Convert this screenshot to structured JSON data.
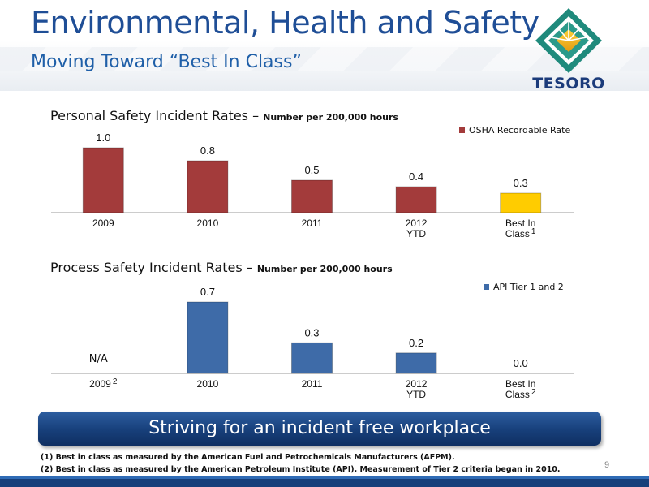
{
  "header": {
    "title": "Environmental, Health and Safety",
    "subtitle": "Moving Toward “Best In Class”",
    "logo_text": "TESORO"
  },
  "chart_data": [
    {
      "type": "bar",
      "title": "Personal Safety Incident Rates – ",
      "title_units": "Number per 200,000 hours",
      "categories": [
        "2009",
        "2010",
        "2011",
        "2012\nYTD",
        "Best In\nClass"
      ],
      "category_superscripts": [
        "",
        "",
        "",
        "",
        "1"
      ],
      "series": [
        {
          "name": "OSHA Recordable Rate",
          "values": [
            1.0,
            0.8,
            0.5,
            0.4,
            0.3
          ],
          "labels": [
            "1.0",
            "0.8",
            "0.5",
            "0.4",
            "0.3"
          ]
        }
      ],
      "colors": [
        "#a33b3b",
        "#a33b3b",
        "#a33b3b",
        "#a33b3b",
        "#ffcc00"
      ],
      "legend_color": "#a33b3b",
      "legend_position": "top-right",
      "ylim": [
        0,
        1.0
      ]
    },
    {
      "type": "bar",
      "title": "Process Safety Incident Rates – ",
      "title_units": "Number per 200,000 hours",
      "categories": [
        "2009",
        "2010",
        "2011",
        "2012\nYTD",
        "Best In\nClass"
      ],
      "category_superscripts": [
        "2",
        "",
        "",
        "",
        "2"
      ],
      "series": [
        {
          "name": "API Tier 1 and 2",
          "values": [
            null,
            0.7,
            0.3,
            0.2,
            0.0
          ],
          "labels": [
            "N/A",
            "0.7",
            "0.3",
            "0.2",
            "0.0"
          ]
        }
      ],
      "colors": [
        "#3e6ba8",
        "#3e6ba8",
        "#3e6ba8",
        "#3e6ba8",
        "#3e6ba8"
      ],
      "legend_color": "#3e6ba8",
      "legend_position": "top-right",
      "ylim": [
        0,
        0.7
      ]
    }
  ],
  "banner": {
    "text": "Striving for an incident free workplace"
  },
  "footnotes": [
    "(1)  Best in class as measured by the American Fuel and Petrochemicals Manufacturers (AFPM).",
    "(2)  Best in class as measured by the American Petroleum Institute (API). Measurement of Tier 2 criteria began in 2010."
  ],
  "page_number": "9"
}
